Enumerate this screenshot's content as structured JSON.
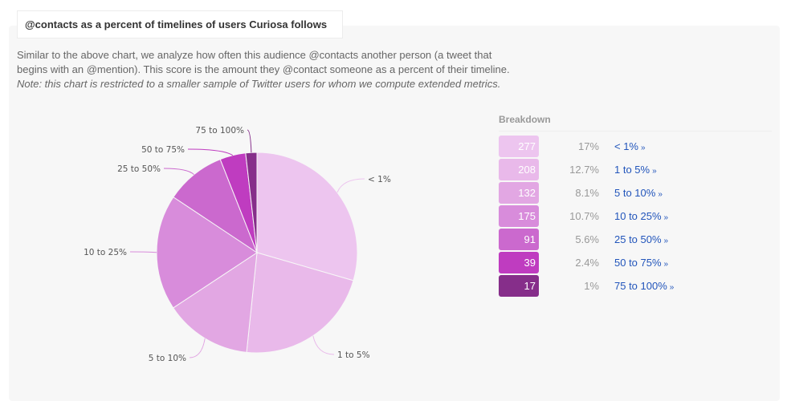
{
  "card": {
    "title": "@contacts as a percent of timelines of users Curiosa follows",
    "description_plain": "Similar to the above chart, we analyze how often this audience @contacts another person (a tweet that begins with an @mention). This score is the amount they @contact someone as a percent of their timeline. ",
    "description_note": "Note: this chart is restricted to a smaller sample of Twitter users for whom we compute extended metrics."
  },
  "breakdown": {
    "title": "Breakdown",
    "link_suffix": "»",
    "rows": [
      {
        "count": "277",
        "percent": "17%",
        "label": "< 1%",
        "color": "#edc5ef"
      },
      {
        "count": "208",
        "percent": "12.7%",
        "label": "1 to 5%",
        "color": "#e9b9ea"
      },
      {
        "count": "132",
        "percent": "8.1%",
        "label": "5 to 10%",
        "color": "#e2a7e3"
      },
      {
        "count": "175",
        "percent": "10.7%",
        "label": "10 to 25%",
        "color": "#d88cdb"
      },
      {
        "count": "91",
        "percent": "5.6%",
        "label": "25 to 50%",
        "color": "#cb69ce"
      },
      {
        "count": "39",
        "percent": "2.4%",
        "label": "50 to 75%",
        "color": "#bf3cc0"
      },
      {
        "count": "17",
        "percent": "1%",
        "label": "75 to 100%",
        "color": "#862e8a"
      }
    ]
  },
  "chart_data": {
    "type": "pie",
    "title": "@contacts as a percent of timelines of users Curiosa follows",
    "categories": [
      "< 1%",
      "1 to 5%",
      "5 to 10%",
      "10 to 25%",
      "25 to 50%",
      "50 to 75%",
      "75 to 100%"
    ],
    "values": [
      277,
      208,
      132,
      175,
      91,
      39,
      17
    ],
    "percent_labels": [
      "17%",
      "12.7%",
      "8.1%",
      "10.7%",
      "5.6%",
      "2.4%",
      "1%"
    ],
    "colors": [
      "#edc5ef",
      "#e9b9ea",
      "#e2a7e3",
      "#d88cdb",
      "#cb69ce",
      "#bf3cc0",
      "#862e8a"
    ],
    "legend_title": "Breakdown",
    "legend_position": "right",
    "start_angle": "12 o'clock, clockwise"
  }
}
